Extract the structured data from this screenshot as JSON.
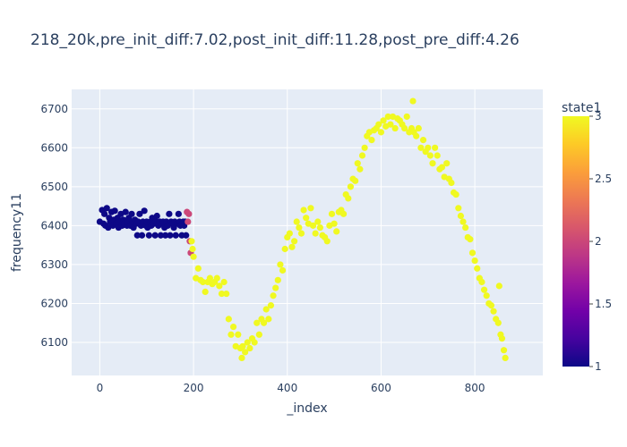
{
  "chart_data": {
    "type": "scatter",
    "title": "218_20k,pre_init_diff:7.02,post_init_diff:11.28,post_pre_diff:4.26",
    "xlabel": "_index",
    "ylabel": "frequency11",
    "xlim": [
      -60,
      945
    ],
    "ylim": [
      6015,
      6750
    ],
    "xticks": [
      0,
      200,
      400,
      600,
      800
    ],
    "yticks": [
      6100,
      6200,
      6300,
      6400,
      6500,
      6600,
      6700
    ],
    "grid": true,
    "colorbar": {
      "title": "state1",
      "range": [
        1,
        3
      ],
      "ticks": [
        "1",
        "1.5",
        "2",
        "2.5",
        "3"
      ],
      "colorscale": [
        "#0d0887",
        "#46039f",
        "#7201a8",
        "#9c179e",
        "#bd3786",
        "#d8576b",
        "#ed7953",
        "#fb9f3a",
        "#fdca26",
        "#f0f921"
      ]
    },
    "series": [
      {
        "state": 1,
        "points": [
          [
            0,
            6410
          ],
          [
            5,
            6440
          ],
          [
            8,
            6405
          ],
          [
            10,
            6430
          ],
          [
            12,
            6400
          ],
          [
            15,
            6445
          ],
          [
            18,
            6395
          ],
          [
            20,
            6420
          ],
          [
            22,
            6410
          ],
          [
            25,
            6435
          ],
          [
            28,
            6400
          ],
          [
            30,
            6415
          ],
          [
            32,
            6438
          ],
          [
            35,
            6405
          ],
          [
            38,
            6420
          ],
          [
            40,
            6395
          ],
          [
            42,
            6410
          ],
          [
            45,
            6430
          ],
          [
            48,
            6400
          ],
          [
            50,
            6415
          ],
          [
            52,
            6405
          ],
          [
            55,
            6435
          ],
          [
            58,
            6400
          ],
          [
            60,
            6410
          ],
          [
            62,
            6420
          ],
          [
            65,
            6400
          ],
          [
            68,
            6430
          ],
          [
            70,
            6410
          ],
          [
            72,
            6395
          ],
          [
            75,
            6415
          ],
          [
            78,
            6405
          ],
          [
            80,
            6375
          ],
          [
            82,
            6410
          ],
          [
            85,
            6430
          ],
          [
            88,
            6400
          ],
          [
            90,
            6375
          ],
          [
            92,
            6410
          ],
          [
            95,
            6438
          ],
          [
            98,
            6400
          ],
          [
            100,
            6410
          ],
          [
            102,
            6395
          ],
          [
            105,
            6375
          ],
          [
            108,
            6410
          ],
          [
            110,
            6400
          ],
          [
            112,
            6420
          ],
          [
            115,
            6405
          ],
          [
            118,
            6375
          ],
          [
            120,
            6410
          ],
          [
            122,
            6425
          ],
          [
            125,
            6400
          ],
          [
            128,
            6410
          ],
          [
            130,
            6375
          ],
          [
            132,
            6405
          ],
          [
            135,
            6410
          ],
          [
            138,
            6395
          ],
          [
            140,
            6375
          ],
          [
            142,
            6410
          ],
          [
            145,
            6400
          ],
          [
            148,
            6430
          ],
          [
            150,
            6375
          ],
          [
            152,
            6410
          ],
          [
            155,
            6405
          ],
          [
            158,
            6395
          ],
          [
            160,
            6410
          ],
          [
            162,
            6375
          ],
          [
            165,
            6405
          ],
          [
            168,
            6430
          ],
          [
            170,
            6410
          ],
          [
            172,
            6400
          ],
          [
            175,
            6375
          ],
          [
            178,
            6410
          ],
          [
            180,
            6400
          ],
          [
            182,
            6410
          ],
          [
            184,
            6375
          ]
        ]
      },
      {
        "state": 2,
        "points": [
          [
            186,
            6435
          ],
          [
            188,
            6410
          ],
          [
            190,
            6430
          ],
          [
            192,
            6360
          ],
          [
            194,
            6330
          ]
        ]
      },
      {
        "state": 3,
        "points": [
          [
            196,
            6360
          ],
          [
            198,
            6340
          ],
          [
            200,
            6320
          ],
          [
            205,
            6265
          ],
          [
            210,
            6290
          ],
          [
            215,
            6260
          ],
          [
            220,
            6255
          ],
          [
            225,
            6230
          ],
          [
            230,
            6255
          ],
          [
            235,
            6265
          ],
          [
            240,
            6250
          ],
          [
            245,
            6255
          ],
          [
            250,
            6265
          ],
          [
            255,
            6245
          ],
          [
            260,
            6225
          ],
          [
            265,
            6255
          ],
          [
            270,
            6225
          ],
          [
            275,
            6160
          ],
          [
            280,
            6120
          ],
          [
            285,
            6140
          ],
          [
            290,
            6090
          ],
          [
            295,
            6120
          ],
          [
            300,
            6085
          ],
          [
            303,
            6060
          ],
          [
            305,
            6090
          ],
          [
            310,
            6075
          ],
          [
            315,
            6100
          ],
          [
            320,
            6085
          ],
          [
            325,
            6110
          ],
          [
            330,
            6100
          ],
          [
            335,
            6150
          ],
          [
            340,
            6120
          ],
          [
            345,
            6160
          ],
          [
            350,
            6150
          ],
          [
            355,
            6185
          ],
          [
            360,
            6160
          ],
          [
            365,
            6195
          ],
          [
            370,
            6220
          ],
          [
            375,
            6240
          ],
          [
            380,
            6260
          ],
          [
            385,
            6300
          ],
          [
            390,
            6285
          ],
          [
            395,
            6340
          ],
          [
            400,
            6370
          ],
          [
            405,
            6380
          ],
          [
            410,
            6345
          ],
          [
            415,
            6360
          ],
          [
            420,
            6410
          ],
          [
            425,
            6395
          ],
          [
            430,
            6380
          ],
          [
            435,
            6440
          ],
          [
            440,
            6420
          ],
          [
            445,
            6405
          ],
          [
            450,
            6445
          ],
          [
            455,
            6400
          ],
          [
            460,
            6380
          ],
          [
            465,
            6410
          ],
          [
            470,
            6395
          ],
          [
            475,
            6375
          ],
          [
            480,
            6370
          ],
          [
            485,
            6360
          ],
          [
            490,
            6400
          ],
          [
            495,
            6430
          ],
          [
            500,
            6405
          ],
          [
            505,
            6385
          ],
          [
            510,
            6435
          ],
          [
            515,
            6440
          ],
          [
            520,
            6430
          ],
          [
            525,
            6480
          ],
          [
            530,
            6470
          ],
          [
            535,
            6500
          ],
          [
            540,
            6520
          ],
          [
            545,
            6515
          ],
          [
            550,
            6560
          ],
          [
            555,
            6545
          ],
          [
            560,
            6580
          ],
          [
            565,
            6600
          ],
          [
            570,
            6630
          ],
          [
            575,
            6640
          ],
          [
            580,
            6620
          ],
          [
            585,
            6645
          ],
          [
            590,
            6650
          ],
          [
            595,
            6660
          ],
          [
            600,
            6640
          ],
          [
            605,
            6670
          ],
          [
            610,
            6655
          ],
          [
            615,
            6680
          ],
          [
            620,
            6660
          ],
          [
            625,
            6680
          ],
          [
            630,
            6650
          ],
          [
            635,
            6675
          ],
          [
            640,
            6670
          ],
          [
            645,
            6660
          ],
          [
            650,
            6650
          ],
          [
            655,
            6680
          ],
          [
            660,
            6640
          ],
          [
            665,
            6650
          ],
          [
            668,
            6720
          ],
          [
            670,
            6640
          ],
          [
            675,
            6630
          ],
          [
            680,
            6650
          ],
          [
            685,
            6600
          ],
          [
            690,
            6620
          ],
          [
            695,
            6590
          ],
          [
            700,
            6600
          ],
          [
            705,
            6580
          ],
          [
            710,
            6560
          ],
          [
            715,
            6600
          ],
          [
            720,
            6580
          ],
          [
            725,
            6545
          ],
          [
            730,
            6550
          ],
          [
            735,
            6525
          ],
          [
            740,
            6560
          ],
          [
            745,
            6520
          ],
          [
            750,
            6510
          ],
          [
            755,
            6485
          ],
          [
            760,
            6480
          ],
          [
            765,
            6445
          ],
          [
            770,
            6425
          ],
          [
            775,
            6410
          ],
          [
            780,
            6395
          ],
          [
            785,
            6370
          ],
          [
            790,
            6365
          ],
          [
            795,
            6330
          ],
          [
            800,
            6310
          ],
          [
            805,
            6290
          ],
          [
            810,
            6265
          ],
          [
            815,
            6255
          ],
          [
            820,
            6235
          ],
          [
            825,
            6220
          ],
          [
            830,
            6200
          ],
          [
            835,
            6195
          ],
          [
            840,
            6180
          ],
          [
            845,
            6160
          ],
          [
            850,
            6150
          ],
          [
            852,
            6245
          ],
          [
            855,
            6120
          ],
          [
            858,
            6110
          ],
          [
            862,
            6080
          ],
          [
            865,
            6060
          ]
        ]
      }
    ]
  }
}
